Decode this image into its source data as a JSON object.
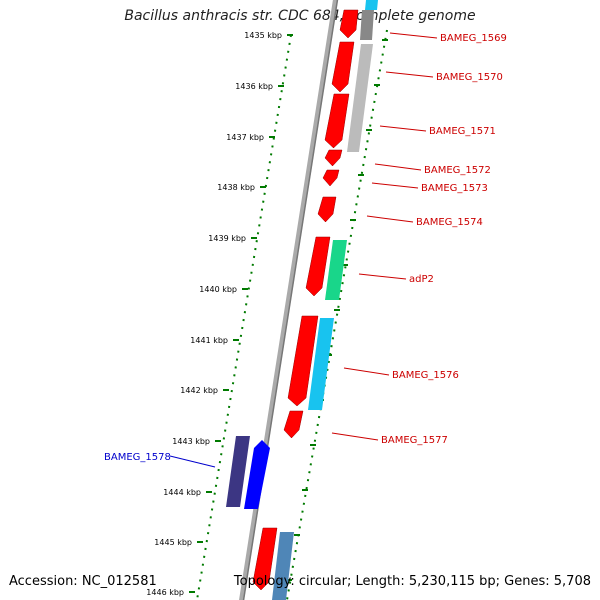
{
  "title": "Bacillus anthracis str. CDC 684, complete genome",
  "footer": {
    "accession": "Accession: NC_012581",
    "topology": "Topology: circular; Length: 5,230,115 bp; Genes: 5,708"
  },
  "ruler": {
    "ticks": [
      "1435 kbp",
      "1436 kbp",
      "1437 kbp",
      "1438 kbp",
      "1439 kbp",
      "1440 kbp",
      "1441 kbp",
      "1442 kbp",
      "1443 kbp",
      "1444 kbp",
      "1445 kbp",
      "1446 kbp"
    ]
  },
  "genes": [
    {
      "label": "BAMEG_1569",
      "color": "#cc0000"
    },
    {
      "label": "BAMEG_1570",
      "color": "#cc0000"
    },
    {
      "label": "BAMEG_1571",
      "color": "#cc0000"
    },
    {
      "label": "BAMEG_1572",
      "color": "#cc0000"
    },
    {
      "label": "BAMEG_1573",
      "color": "#cc0000"
    },
    {
      "label": "BAMEG_1574",
      "color": "#cc0000"
    },
    {
      "label": "adP2",
      "color": "#cc0000"
    },
    {
      "label": "BAMEG_1576",
      "color": "#cc0000"
    },
    {
      "label": "BAMEG_1577",
      "color": "#cc0000"
    },
    {
      "label": "BAMEG_1578",
      "color": "#0000cc"
    }
  ],
  "colors": {
    "forward_cds": "#ff0000",
    "reverse_cds": "#0000ff",
    "reverse_dark": "#3c3683",
    "gray_block": "#bbbbbb",
    "green_block": "#19d68a",
    "cyan_block": "#18c3ef",
    "steel_block": "#4f86b7",
    "tick": "#007a00"
  }
}
